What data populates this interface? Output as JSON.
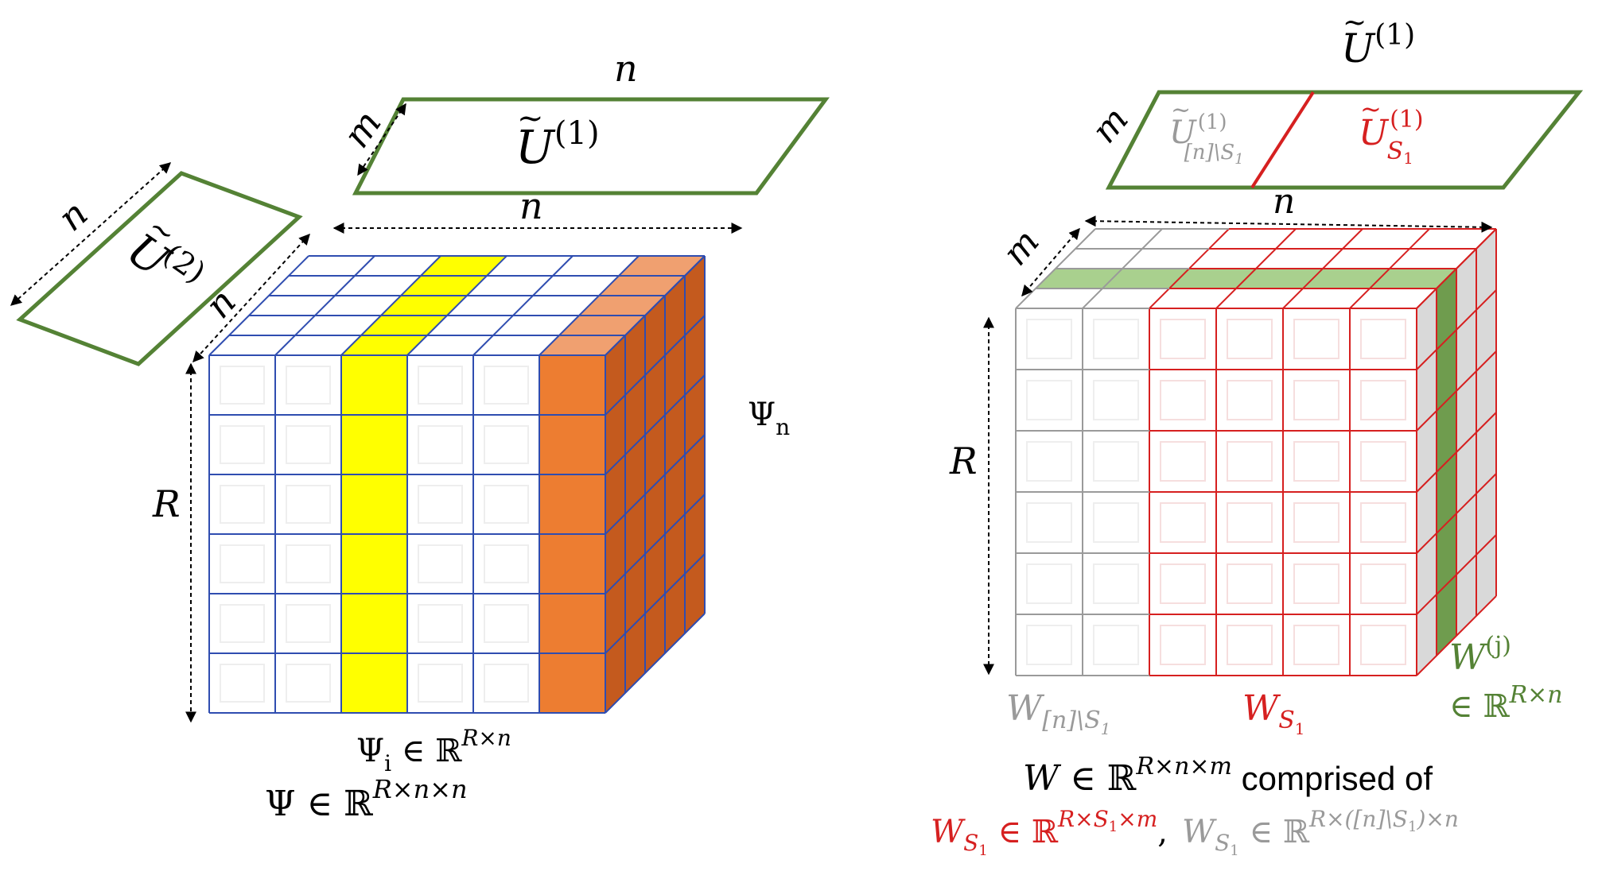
{
  "colors": {
    "green": "#548235",
    "blue": "#2f4db0",
    "yellow": "#ffff00",
    "orange": "#ed7d31",
    "red": "#d62020",
    "grey": "#9a9a9a",
    "light_green": "#a9d08e",
    "black": "#000000"
  },
  "left": {
    "u1_label": "Ũ(1)",
    "u1_base": "U",
    "u1_sup": "(1)",
    "u2_base": "U",
    "u2_sup": "(2)",
    "dim_n_top": "n",
    "dim_m_top": "m",
    "dim_n_u2": "n",
    "dim_n_cube_top": "n",
    "dim_n_cube_depth": "n",
    "dim_R": "R",
    "psi_n_base": "Ψ",
    "psi_n_sub": "n",
    "psi_i_base": "Ψ",
    "psi_i_sub": "i",
    "psi_i_rest": " ∈ ℝ",
    "psi_i_sup": "R×n",
    "psi_base": "Ψ ∈ ℝ",
    "psi_sup": "R×n×n"
  },
  "right": {
    "u1_top_base": "U",
    "u1_top_sup": "(1)",
    "dim_m_top": "m",
    "dim_n_top": "n",
    "dim_m_cube": "m",
    "dim_R": "R",
    "u_rest_base": "U",
    "u_rest_sup": "(1)",
    "u_rest_sub": "[n]\\S",
    "u_rest_sub2": "1",
    "u_s1_base": "U",
    "u_s1_sup": "(1)",
    "u_s1_sub": "S",
    "u_s1_sub2": "1",
    "w_rest_base": "W",
    "w_rest_sub": "[n]\\S",
    "w_rest_sub2": "1",
    "w_s1_base": "W",
    "w_s1_sub": "S",
    "w_s1_sub2": "1",
    "wj_base": "W",
    "wj_sup": "(j)",
    "wj_in": "∈ ℝ",
    "wj_in_sup": "R×n",
    "w_line1_base": "W",
    "w_line1_in": " ∈ ℝ",
    "w_line1_sup": "R×n×m",
    "w_line1_text": " comprised of",
    "w_line2_a_base": "W",
    "w_line2_a_sub": "S",
    "w_line2_a_sub2": "1",
    "w_line2_a_in": " ∈ ℝ",
    "w_line2_a_sup": "R×S",
    "w_line2_a_sup_sub": "1",
    "w_line2_a_sup2": "×m",
    "comma": ",",
    "w_line2_b_base": "W",
    "w_line2_b_sub": "S",
    "w_line2_b_sub2": "1",
    "w_line2_b_in": " ∈ ℝ",
    "w_line2_b_sup": "R×([n]\\S",
    "w_line2_b_sup_sub": "1",
    "w_line2_b_sup2": ")×n"
  }
}
